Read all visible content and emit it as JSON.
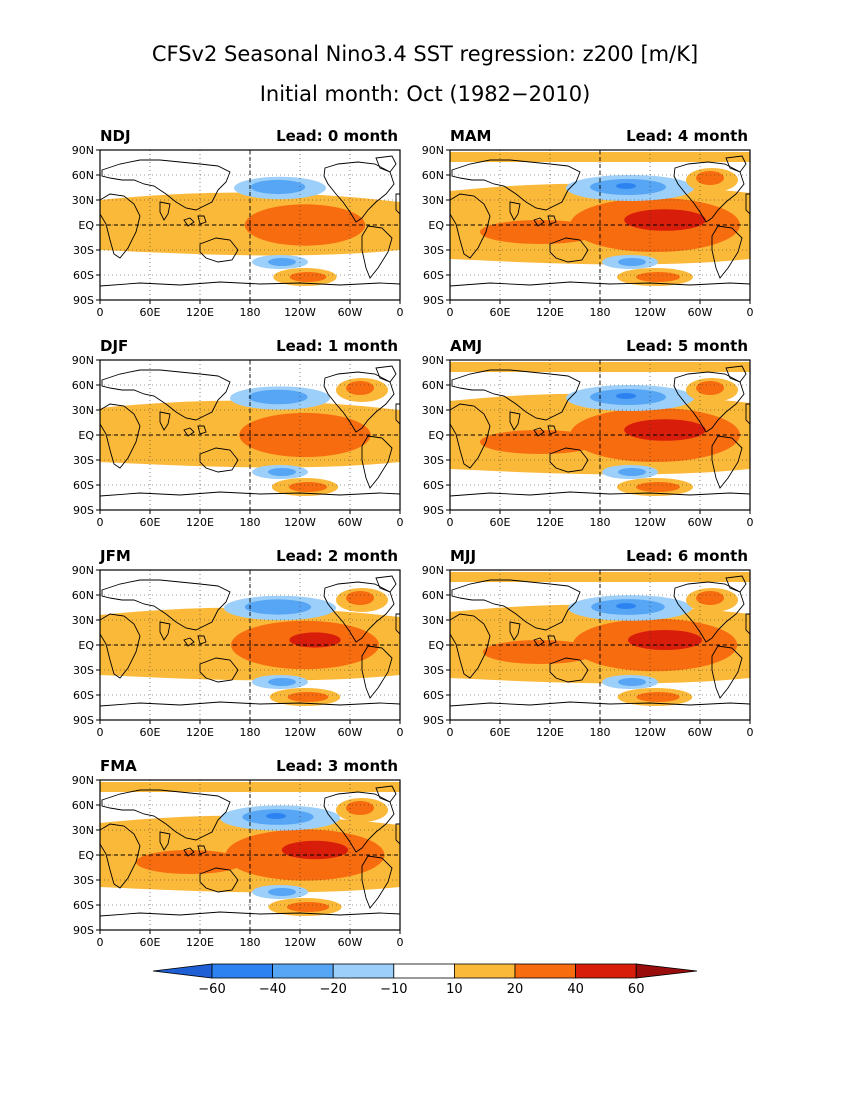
{
  "title_line1": "CFSv2 Seasonal Nino3.4 SST regression: z200 [m/K]",
  "title_line2": "Initial month: Oct (1982−2010)",
  "panels": [
    {
      "season": "NDJ",
      "lead": "Lead: 0 month",
      "intensity": 0.55
    },
    {
      "season": "MAM",
      "lead": "Lead: 4 month",
      "intensity": 1.0
    },
    {
      "season": "DJF",
      "lead": "Lead: 1 month",
      "intensity": 0.65
    },
    {
      "season": "AMJ",
      "lead": "Lead: 5 month",
      "intensity": 1.0
    },
    {
      "season": "JFM",
      "lead": "Lead: 2 month",
      "intensity": 0.8
    },
    {
      "season": "MJJ",
      "lead": "Lead: 6 month",
      "intensity": 0.95
    },
    {
      "season": "FMA",
      "lead": "Lead: 3 month",
      "intensity": 0.9
    }
  ],
  "axes": {
    "y_ticks": [
      "90N",
      "60N",
      "30N",
      "EQ",
      "30S",
      "60S",
      "90S"
    ],
    "x_ticks": [
      "0",
      "60E",
      "120E",
      "180",
      "120W",
      "60W",
      "0"
    ]
  },
  "colorbar": {
    "labels": [
      "−60",
      "−40",
      "−20",
      "−10",
      "10",
      "20",
      "40",
      "60"
    ],
    "colors": [
      "#1f5fd6",
      "#2c82f0",
      "#56a6f5",
      "#9ccff9",
      "#ffffff",
      "#fbb93a",
      "#f86c10",
      "#d81e0a",
      "#9a0d0d"
    ]
  }
}
